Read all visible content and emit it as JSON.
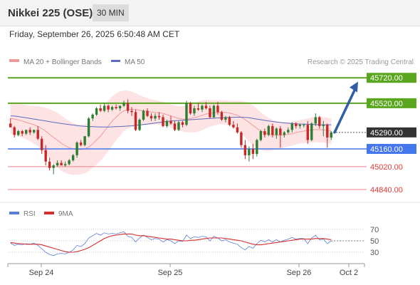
{
  "header": {
    "title": "Nikkei 225 (OSE)",
    "timeframe": "30 MIN"
  },
  "datetime": "Friday, September 26, 2025 6:50:48 AM CET",
  "legend": {
    "bollinger": "MA 20 + Bollinger Bands",
    "ma50": "MA 50",
    "source": "Research © 2025 Trading Central",
    "rsi": "RSI",
    "rsi_ma": "9MA"
  },
  "colors": {
    "up": "#2e7d32",
    "down": "#c62828",
    "band_fill": "#fde0e0",
    "ma20": "#ef9a9a",
    "ma50": "#5c6bc0",
    "resistance": "#5aa61e",
    "pivot": "#4477ee",
    "support": "#f08080",
    "current": "#333333",
    "arrow": "#2f5fa5",
    "rsi": "#5b7fd6",
    "rsi_ma": "#d32f2f"
  },
  "chart_data": [
    {
      "type": "candlestick",
      "title": "Nikkei 225 (OSE)",
      "ylim": [
        44750,
        45800
      ],
      "levels": [
        {
          "label": "45720.00",
          "value": 45720,
          "kind": "resistance"
        },
        {
          "label": "45520.00",
          "value": 45520,
          "kind": "resistance"
        },
        {
          "label": "45290.00",
          "value": 45290,
          "kind": "current"
        },
        {
          "label": "45160.00",
          "value": 45160,
          "kind": "pivot"
        },
        {
          "label": "45020.00",
          "value": 45020,
          "kind": "support"
        },
        {
          "label": "44840.00",
          "value": 44840,
          "kind": "support"
        }
      ],
      "arrow": {
        "from": 45290,
        "to": 45690
      },
      "candles": [
        [
          45360,
          45400,
          45330,
          45330
        ],
        [
          45330,
          45340,
          45250,
          45270
        ],
        [
          45270,
          45310,
          45260,
          45300
        ],
        [
          45300,
          45310,
          45260,
          45280
        ],
        [
          45280,
          45310,
          45270,
          45310
        ],
        [
          45310,
          45330,
          45270,
          45290
        ],
        [
          45290,
          45310,
          45280,
          45310
        ],
        [
          45310,
          45340,
          45230,
          45240
        ],
        [
          45240,
          45260,
          45120,
          45150
        ],
        [
          45150,
          45190,
          45030,
          45060
        ],
        [
          45060,
          45090,
          44990,
          45010
        ],
        [
          45010,
          45040,
          44960,
          45030
        ],
        [
          45030,
          45070,
          45020,
          45050
        ],
        [
          45050,
          45070,
          45030,
          45030
        ],
        [
          45030,
          45060,
          45020,
          45040
        ],
        [
          45040,
          45080,
          45030,
          45070
        ],
        [
          45070,
          45120,
          45060,
          45110
        ],
        [
          45110,
          45220,
          45090,
          45210
        ],
        [
          45210,
          45230,
          45180,
          45190
        ],
        [
          45190,
          45260,
          45180,
          45260
        ],
        [
          45260,
          45410,
          45250,
          45400
        ],
        [
          45400,
          45440,
          45380,
          45430
        ],
        [
          45430,
          45490,
          45420,
          45480
        ],
        [
          45480,
          45510,
          45450,
          45460
        ],
        [
          45460,
          45520,
          45450,
          45500
        ],
        [
          45500,
          45510,
          45450,
          45470
        ],
        [
          45470,
          45500,
          45460,
          45490
        ],
        [
          45490,
          45510,
          45470,
          45480
        ],
        [
          45480,
          45500,
          45460,
          45500
        ],
        [
          45500,
          45540,
          45490,
          45520
        ],
        [
          45520,
          45550,
          45440,
          45460
        ],
        [
          45460,
          45490,
          45420,
          45450
        ],
        [
          45450,
          45470,
          45300,
          45310
        ],
        [
          45310,
          45400,
          45300,
          45390
        ],
        [
          45390,
          45470,
          45380,
          45460
        ],
        [
          45460,
          45480,
          45410,
          45420
        ],
        [
          45420,
          45440,
          45380,
          45400
        ],
        [
          45400,
          45440,
          45380,
          45420
        ],
        [
          45420,
          45450,
          45390,
          45410
        ],
        [
          45410,
          45430,
          45330,
          45340
        ],
        [
          45340,
          45390,
          45330,
          45380
        ],
        [
          45380,
          45420,
          45350,
          45360
        ],
        [
          45360,
          45380,
          45300,
          45310
        ],
        [
          45310,
          45380,
          45300,
          45370
        ],
        [
          45370,
          45380,
          45330,
          45350
        ],
        [
          45350,
          45540,
          45340,
          45520
        ],
        [
          45520,
          45530,
          45430,
          45440
        ],
        [
          45440,
          45500,
          45420,
          45480
        ],
        [
          45480,
          45520,
          45460,
          45470
        ],
        [
          45470,
          45510,
          45450,
          45500
        ],
        [
          45500,
          45530,
          45470,
          45480
        ],
        [
          45480,
          45500,
          45400,
          45410
        ],
        [
          45410,
          45510,
          45400,
          45500
        ],
        [
          45500,
          45530,
          45430,
          45450
        ],
        [
          45450,
          45460,
          45380,
          45390
        ],
        [
          45390,
          45420,
          45370,
          45410
        ],
        [
          45410,
          45420,
          45340,
          45350
        ],
        [
          45350,
          45380,
          45320,
          45330
        ],
        [
          45330,
          45360,
          45280,
          45290
        ],
        [
          45290,
          45300,
          45170,
          45190
        ],
        [
          45190,
          45230,
          45080,
          45110
        ],
        [
          45110,
          45180,
          45060,
          45160
        ],
        [
          45160,
          45200,
          45080,
          45120
        ],
        [
          45120,
          45240,
          45100,
          45230
        ],
        [
          45230,
          45310,
          45220,
          45300
        ],
        [
          45300,
          45320,
          45250,
          45270
        ],
        [
          45270,
          45350,
          45260,
          45340
        ],
        [
          45340,
          45360,
          45250,
          45270
        ],
        [
          45270,
          45330,
          45240,
          45320
        ],
        [
          45320,
          45340,
          45170,
          45270
        ],
        [
          45270,
          45300,
          45250,
          45290
        ],
        [
          45290,
          45330,
          45280,
          45310
        ],
        [
          45310,
          45370,
          45290,
          45360
        ],
        [
          45360,
          45370,
          45320,
          45340
        ],
        [
          45340,
          45360,
          45320,
          45350
        ],
        [
          45350,
          45360,
          45330,
          45350
        ],
        [
          45350,
          45380,
          45200,
          45230
        ],
        [
          45230,
          45370,
          45220,
          45360
        ],
        [
          45360,
          45440,
          45340,
          45410
        ],
        [
          45410,
          45420,
          45320,
          45340
        ],
        [
          45340,
          45380,
          45260,
          45350
        ],
        [
          45350,
          45360,
          45170,
          45250
        ],
        [
          45250,
          45300,
          45230,
          45290
        ]
      ],
      "ma50": [
        45420,
        45420,
        45415,
        45410,
        45405,
        45400,
        45395,
        45390,
        45385,
        45380,
        45375,
        45370,
        45365,
        45360,
        45356,
        45352,
        45348,
        45344,
        45340,
        45338,
        45336,
        45335,
        45334,
        45333,
        45333,
        45333,
        45334,
        45335,
        45336,
        45338,
        45340,
        45342,
        45345,
        45348,
        45352,
        45356,
        45360,
        45364,
        45368,
        45372,
        45376,
        45380,
        45382,
        45384,
        45386,
        45388,
        45390,
        45392,
        45394,
        45396,
        45398,
        45400,
        45402,
        45404,
        45406,
        45407,
        45408,
        45409,
        45410,
        45410,
        45408,
        45405,
        45400,
        45395,
        45390,
        45385,
        45380,
        45376,
        45372,
        45368,
        45365,
        45362,
        45360,
        45358,
        45356,
        45355,
        45354,
        45353,
        45352,
        45351,
        45350,
        45350,
        45350
      ],
      "ma20": [
        45400,
        45395,
        45388,
        45380,
        45370,
        45360,
        45350,
        45338,
        45320,
        45300,
        45275,
        45250,
        45228,
        45205,
        45185,
        45170,
        45160,
        45155,
        45155,
        45160,
        45175,
        45200,
        45230,
        45260,
        45300,
        45340,
        45380,
        45410,
        45440,
        45460,
        45470,
        45472,
        45470,
        45465,
        45460,
        45455,
        45450,
        45448,
        45445,
        45440,
        45430,
        45420,
        45410,
        45400,
        45395,
        45395,
        45400,
        45405,
        45415,
        45425,
        45435,
        45440,
        45445,
        45448,
        45450,
        45448,
        45442,
        45435,
        45425,
        45410,
        45390,
        45368,
        45345,
        45322,
        45300,
        45285,
        45275,
        45270,
        45268,
        45268,
        45270,
        45275,
        45280,
        45288,
        45295,
        45300,
        45305,
        45310,
        45312,
        45312,
        45310,
        45305,
        45300
      ],
      "band_width": [
        120,
        122,
        125,
        130,
        135,
        140,
        148,
        158,
        170,
        185,
        198,
        210,
        215,
        218,
        215,
        210,
        205,
        200,
        195,
        192,
        190,
        190,
        192,
        195,
        198,
        200,
        195,
        185,
        175,
        160,
        150,
        140,
        130,
        120,
        112,
        105,
        100,
        96,
        94,
        92,
        90,
        90,
        92,
        95,
        100,
        105,
        110,
        115,
        120,
        118,
        112,
        105,
        100,
        96,
        94,
        95,
        98,
        105,
        115,
        128,
        142,
        152,
        158,
        155,
        148,
        140,
        130,
        120,
        110,
        104,
        100,
        96,
        94,
        92,
        92,
        94,
        96,
        98,
        100,
        100,
        100,
        100,
        100
      ]
    },
    {
      "type": "line",
      "title": "RSI",
      "ylim": [
        15,
        85
      ],
      "ticks": [
        "70",
        "50",
        "30"
      ],
      "tick_values": [
        70,
        50,
        30
      ],
      "x_ticks": [
        "Sep 24",
        "Sep 25",
        "Sep 26",
        "Oct 2"
      ],
      "series": [
        {
          "name": "RSI",
          "values": [
            46,
            42,
            44,
            43,
            45,
            44,
            46,
            42,
            36,
            30,
            26,
            24,
            27,
            28,
            27,
            30,
            34,
            42,
            40,
            45,
            55,
            59,
            63,
            60,
            64,
            62,
            63,
            62,
            64,
            66,
            58,
            56,
            48,
            55,
            60,
            56,
            52,
            54,
            53,
            48,
            52,
            50,
            45,
            50,
            49,
            60,
            54,
            57,
            56,
            58,
            57,
            50,
            58,
            55,
            50,
            52,
            48,
            46,
            44,
            38,
            34,
            40,
            37,
            45,
            51,
            48,
            52,
            48,
            52,
            48,
            51,
            53,
            56,
            53,
            54,
            54,
            45,
            55,
            60,
            52,
            53,
            45,
            50
          ]
        },
        {
          "name": "9MA",
          "values": [
            47,
            46,
            45,
            45,
            44,
            44,
            44,
            44,
            43,
            41,
            39,
            37,
            35,
            33,
            31,
            30,
            30,
            31,
            33,
            35,
            38,
            42,
            46,
            50,
            54,
            57,
            59,
            60,
            61,
            62,
            62,
            62,
            60,
            59,
            59,
            58,
            57,
            56,
            55,
            54,
            53,
            53,
            52,
            51,
            50,
            50,
            51,
            51,
            52,
            53,
            54,
            55,
            55,
            55,
            55,
            54,
            53,
            52,
            51,
            50,
            48,
            46,
            44,
            43,
            43,
            44,
            45,
            46,
            47,
            48,
            49,
            50,
            51,
            52,
            53,
            53,
            53,
            53,
            54,
            54,
            54,
            53,
            52
          ]
        }
      ]
    }
  ]
}
